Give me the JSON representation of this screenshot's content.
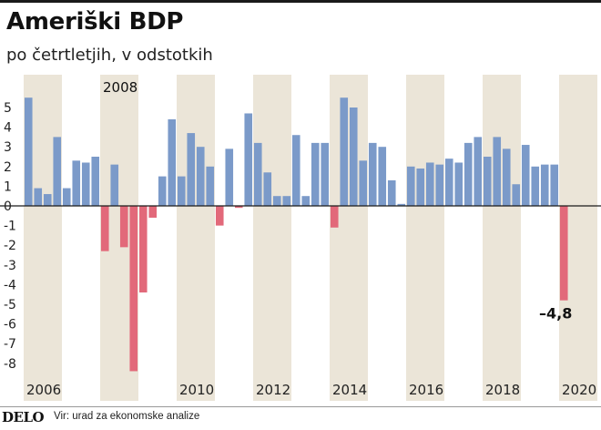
{
  "title": "Ameriški BDP",
  "subtitle": "po četrtletjih, v odstotkih",
  "footer": {
    "logo": "DELO",
    "source": "Vir: urad za ekonomske analize"
  },
  "colors": {
    "positive": "#7b9ac9",
    "negative": "#e2697a",
    "band": "#ebe5d8",
    "axis": "#1a1a1a"
  },
  "chart_data": {
    "type": "bar",
    "title": "Ameriški BDP",
    "ylabel": "po četrtletjih, v odstotkih",
    "ylim": [
      -8.6,
      5.8
    ],
    "yticks": [
      5,
      4,
      3,
      2,
      1,
      0,
      -1,
      -2,
      -3,
      -4,
      -5,
      -6,
      -7,
      -8
    ],
    "ytick_labels": [
      "5",
      "4",
      "3",
      "2",
      "1",
      "0",
      "-1",
      "-2",
      "-3",
      "-4",
      "-5",
      "-6",
      "-7",
      "-8"
    ],
    "start_year": 2006,
    "x_labels": [
      {
        "label": "2006",
        "year": 2006
      },
      {
        "label": "2010",
        "year": 2010
      },
      {
        "label": "2012",
        "year": 2012
      },
      {
        "label": "2014",
        "year": 2014
      },
      {
        "label": "2016",
        "year": 2016
      },
      {
        "label": "2018",
        "year": 2018
      },
      {
        "label": "2020",
        "year": 2020
      }
    ],
    "values": [
      5.5,
      0.9,
      0.6,
      3.5,
      0.9,
      2.3,
      2.2,
      2.5,
      -2.3,
      2.1,
      -2.1,
      -8.4,
      -4.4,
      -0.6,
      1.5,
      4.4,
      1.5,
      3.7,
      3.0,
      2.0,
      -1.0,
      2.9,
      -0.1,
      4.7,
      3.2,
      1.7,
      0.5,
      0.5,
      3.6,
      0.5,
      3.2,
      3.2,
      -1.1,
      5.5,
      5.0,
      2.3,
      3.2,
      3.0,
      1.3,
      0.1,
      2.0,
      1.9,
      2.2,
      2.1,
      2.4,
      2.2,
      3.2,
      3.5,
      2.5,
      3.5,
      2.9,
      1.1,
      3.1,
      2.0,
      2.1,
      2.1,
      -4.8
    ],
    "annotations": [
      {
        "text": "2008",
        "year": 2008
      },
      {
        "text": "–4,8",
        "index": 56
      }
    ]
  }
}
